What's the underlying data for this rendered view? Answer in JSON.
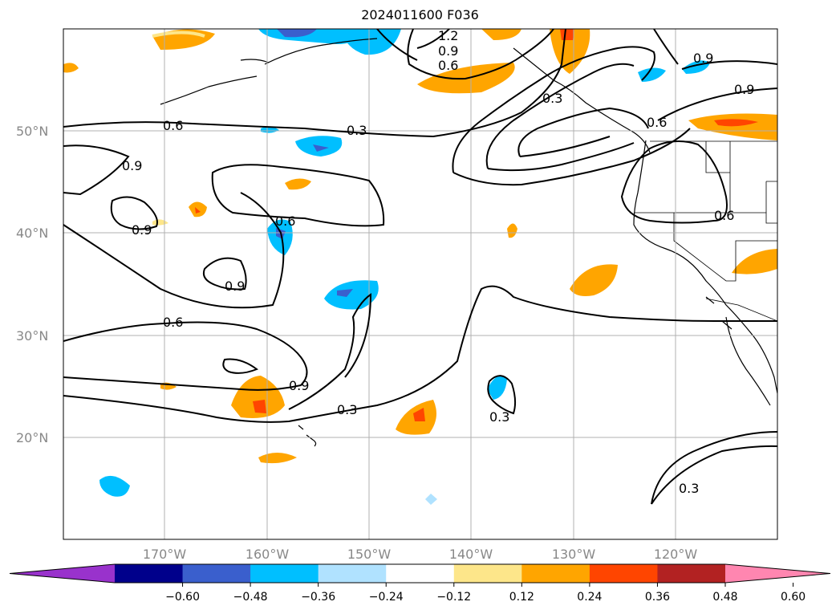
{
  "title": "2024011600 F036",
  "lat_labels": [
    "50°N",
    "40°N",
    "30°N",
    "20°N"
  ],
  "lon_labels": [
    "170°W",
    "160°W",
    "150°W",
    "140°W",
    "130°W",
    "120°W"
  ],
  "contour_labels": [
    "1.2",
    "0.9",
    "0.6",
    "0.6",
    "0.3",
    "0.9",
    "0.6",
    "0.9",
    "0.9",
    "0.6",
    "0.9",
    "0.6",
    "0.9",
    "0.3",
    "0.3",
    "0.3",
    "0.9",
    "0.6",
    "0.3"
  ],
  "colorbar": {
    "tick_labels": [
      "−0.60",
      "−0.48",
      "−0.36",
      "−0.24",
      "−0.12",
      "0.12",
      "0.24",
      "0.36",
      "0.48",
      "0.60"
    ],
    "colors": [
      "#9932cc",
      "#00008b",
      "#3a5fcd",
      "#00bfff",
      "#b0e2ff",
      "#ffffff",
      "#fde68a",
      "#ffa500",
      "#ff4500",
      "#b22222",
      "#ff86b0"
    ]
  },
  "colors": {
    "grid": "#b0b0b0",
    "contour": "#000000",
    "axis_label": "#888888"
  }
}
